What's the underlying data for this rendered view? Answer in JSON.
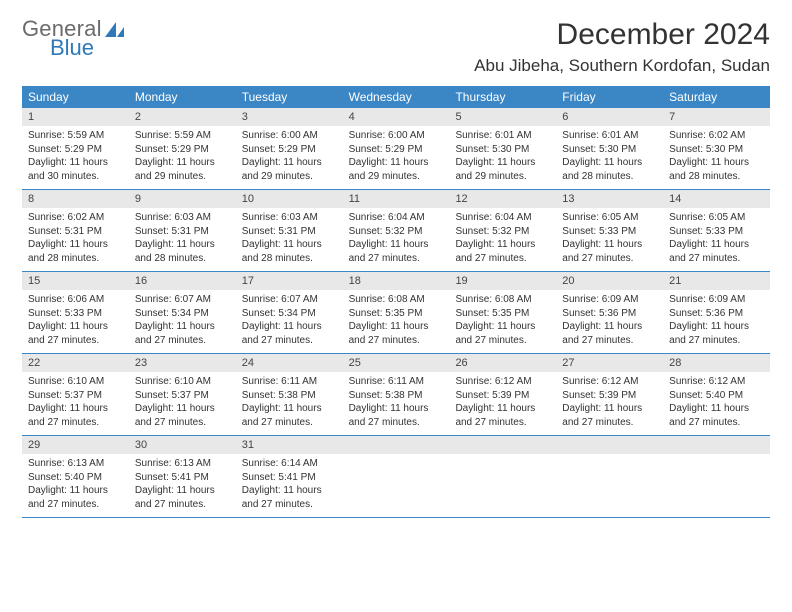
{
  "logo": {
    "word1": "General",
    "word2": "Blue"
  },
  "title": "December 2024",
  "location": "Abu Jibeha, Southern Kordofan, Sudan",
  "colors": {
    "header_bg": "#3b86c4",
    "header_text": "#ffffff",
    "daynum_bg": "#e8e8e8",
    "rule": "#3b86c4",
    "logo_gray": "#6b6b6b",
    "logo_blue": "#2f79b8"
  },
  "weekdays": [
    "Sunday",
    "Monday",
    "Tuesday",
    "Wednesday",
    "Thursday",
    "Friday",
    "Saturday"
  ],
  "weeks": [
    [
      {
        "n": "1",
        "sr": "Sunrise: 5:59 AM",
        "ss": "Sunset: 5:29 PM",
        "d1": "Daylight: 11 hours",
        "d2": "and 30 minutes."
      },
      {
        "n": "2",
        "sr": "Sunrise: 5:59 AM",
        "ss": "Sunset: 5:29 PM",
        "d1": "Daylight: 11 hours",
        "d2": "and 29 minutes."
      },
      {
        "n": "3",
        "sr": "Sunrise: 6:00 AM",
        "ss": "Sunset: 5:29 PM",
        "d1": "Daylight: 11 hours",
        "d2": "and 29 minutes."
      },
      {
        "n": "4",
        "sr": "Sunrise: 6:00 AM",
        "ss": "Sunset: 5:29 PM",
        "d1": "Daylight: 11 hours",
        "d2": "and 29 minutes."
      },
      {
        "n": "5",
        "sr": "Sunrise: 6:01 AM",
        "ss": "Sunset: 5:30 PM",
        "d1": "Daylight: 11 hours",
        "d2": "and 29 minutes."
      },
      {
        "n": "6",
        "sr": "Sunrise: 6:01 AM",
        "ss": "Sunset: 5:30 PM",
        "d1": "Daylight: 11 hours",
        "d2": "and 28 minutes."
      },
      {
        "n": "7",
        "sr": "Sunrise: 6:02 AM",
        "ss": "Sunset: 5:30 PM",
        "d1": "Daylight: 11 hours",
        "d2": "and 28 minutes."
      }
    ],
    [
      {
        "n": "8",
        "sr": "Sunrise: 6:02 AM",
        "ss": "Sunset: 5:31 PM",
        "d1": "Daylight: 11 hours",
        "d2": "and 28 minutes."
      },
      {
        "n": "9",
        "sr": "Sunrise: 6:03 AM",
        "ss": "Sunset: 5:31 PM",
        "d1": "Daylight: 11 hours",
        "d2": "and 28 minutes."
      },
      {
        "n": "10",
        "sr": "Sunrise: 6:03 AM",
        "ss": "Sunset: 5:31 PM",
        "d1": "Daylight: 11 hours",
        "d2": "and 28 minutes."
      },
      {
        "n": "11",
        "sr": "Sunrise: 6:04 AM",
        "ss": "Sunset: 5:32 PM",
        "d1": "Daylight: 11 hours",
        "d2": "and 27 minutes."
      },
      {
        "n": "12",
        "sr": "Sunrise: 6:04 AM",
        "ss": "Sunset: 5:32 PM",
        "d1": "Daylight: 11 hours",
        "d2": "and 27 minutes."
      },
      {
        "n": "13",
        "sr": "Sunrise: 6:05 AM",
        "ss": "Sunset: 5:33 PM",
        "d1": "Daylight: 11 hours",
        "d2": "and 27 minutes."
      },
      {
        "n": "14",
        "sr": "Sunrise: 6:05 AM",
        "ss": "Sunset: 5:33 PM",
        "d1": "Daylight: 11 hours",
        "d2": "and 27 minutes."
      }
    ],
    [
      {
        "n": "15",
        "sr": "Sunrise: 6:06 AM",
        "ss": "Sunset: 5:33 PM",
        "d1": "Daylight: 11 hours",
        "d2": "and 27 minutes."
      },
      {
        "n": "16",
        "sr": "Sunrise: 6:07 AM",
        "ss": "Sunset: 5:34 PM",
        "d1": "Daylight: 11 hours",
        "d2": "and 27 minutes."
      },
      {
        "n": "17",
        "sr": "Sunrise: 6:07 AM",
        "ss": "Sunset: 5:34 PM",
        "d1": "Daylight: 11 hours",
        "d2": "and 27 minutes."
      },
      {
        "n": "18",
        "sr": "Sunrise: 6:08 AM",
        "ss": "Sunset: 5:35 PM",
        "d1": "Daylight: 11 hours",
        "d2": "and 27 minutes."
      },
      {
        "n": "19",
        "sr": "Sunrise: 6:08 AM",
        "ss": "Sunset: 5:35 PM",
        "d1": "Daylight: 11 hours",
        "d2": "and 27 minutes."
      },
      {
        "n": "20",
        "sr": "Sunrise: 6:09 AM",
        "ss": "Sunset: 5:36 PM",
        "d1": "Daylight: 11 hours",
        "d2": "and 27 minutes."
      },
      {
        "n": "21",
        "sr": "Sunrise: 6:09 AM",
        "ss": "Sunset: 5:36 PM",
        "d1": "Daylight: 11 hours",
        "d2": "and 27 minutes."
      }
    ],
    [
      {
        "n": "22",
        "sr": "Sunrise: 6:10 AM",
        "ss": "Sunset: 5:37 PM",
        "d1": "Daylight: 11 hours",
        "d2": "and 27 minutes."
      },
      {
        "n": "23",
        "sr": "Sunrise: 6:10 AM",
        "ss": "Sunset: 5:37 PM",
        "d1": "Daylight: 11 hours",
        "d2": "and 27 minutes."
      },
      {
        "n": "24",
        "sr": "Sunrise: 6:11 AM",
        "ss": "Sunset: 5:38 PM",
        "d1": "Daylight: 11 hours",
        "d2": "and 27 minutes."
      },
      {
        "n": "25",
        "sr": "Sunrise: 6:11 AM",
        "ss": "Sunset: 5:38 PM",
        "d1": "Daylight: 11 hours",
        "d2": "and 27 minutes."
      },
      {
        "n": "26",
        "sr": "Sunrise: 6:12 AM",
        "ss": "Sunset: 5:39 PM",
        "d1": "Daylight: 11 hours",
        "d2": "and 27 minutes."
      },
      {
        "n": "27",
        "sr": "Sunrise: 6:12 AM",
        "ss": "Sunset: 5:39 PM",
        "d1": "Daylight: 11 hours",
        "d2": "and 27 minutes."
      },
      {
        "n": "28",
        "sr": "Sunrise: 6:12 AM",
        "ss": "Sunset: 5:40 PM",
        "d1": "Daylight: 11 hours",
        "d2": "and 27 minutes."
      }
    ],
    [
      {
        "n": "29",
        "sr": "Sunrise: 6:13 AM",
        "ss": "Sunset: 5:40 PM",
        "d1": "Daylight: 11 hours",
        "d2": "and 27 minutes."
      },
      {
        "n": "30",
        "sr": "Sunrise: 6:13 AM",
        "ss": "Sunset: 5:41 PM",
        "d1": "Daylight: 11 hours",
        "d2": "and 27 minutes."
      },
      {
        "n": "31",
        "sr": "Sunrise: 6:14 AM",
        "ss": "Sunset: 5:41 PM",
        "d1": "Daylight: 11 hours",
        "d2": "and 27 minutes."
      },
      {
        "empty": true
      },
      {
        "empty": true
      },
      {
        "empty": true
      },
      {
        "empty": true
      }
    ]
  ]
}
